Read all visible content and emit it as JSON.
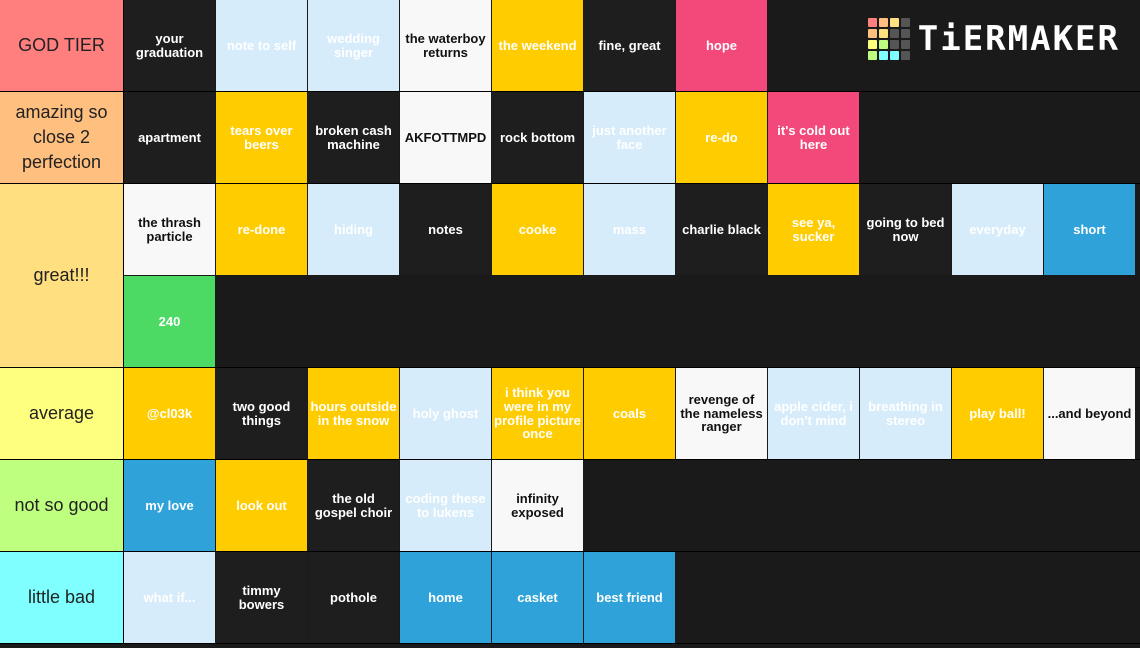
{
  "logo": "TiERMAKER",
  "tiers": [
    {
      "label": "GOD TIER",
      "color": "#ff7f7f",
      "items": [
        {
          "text": "your graduation",
          "color": "#1e1e1e"
        },
        {
          "text": "note to self",
          "color": "#d6ecfa"
        },
        {
          "text": "wedding singer",
          "color": "#d6ecfa"
        },
        {
          "text": "the waterboy returns",
          "color": "#f8f8f8"
        },
        {
          "text": "the weekend",
          "color": "#ffcc00"
        },
        {
          "text": "fine, great",
          "color": "#1e1e1e"
        },
        {
          "text": "hope",
          "color": "#f2497a"
        }
      ]
    },
    {
      "label": "amazing so close 2 perfection",
      "color": "#ffbf7f",
      "items": [
        {
          "text": "apartment",
          "color": "#1e1e1e"
        },
        {
          "text": "tears over beers",
          "color": "#ffcc00"
        },
        {
          "text": "broken cash machine",
          "color": "#1e1e1e"
        },
        {
          "text": "AKFOTTMPD",
          "color": "#f8f8f8"
        },
        {
          "text": "rock bottom",
          "color": "#1e1e1e"
        },
        {
          "text": "just another face",
          "color": "#d6ecfa"
        },
        {
          "text": "re-do",
          "color": "#ffcc00"
        },
        {
          "text": "it's cold out here",
          "color": "#f2497a"
        }
      ]
    },
    {
      "label": "great!!!",
      "color": "#ffdf7f",
      "items": [
        {
          "text": "the thrash particle",
          "color": "#f8f8f8"
        },
        {
          "text": "re-done",
          "color": "#ffcc00"
        },
        {
          "text": "hiding",
          "color": "#d6ecfa"
        },
        {
          "text": "notes",
          "color": "#1e1e1e"
        },
        {
          "text": "cooke",
          "color": "#ffcc00"
        },
        {
          "text": "mass",
          "color": "#d6ecfa"
        },
        {
          "text": "charlie black",
          "color": "#1e1e1e"
        },
        {
          "text": "see ya, sucker",
          "color": "#ffcc00"
        },
        {
          "text": "going to bed now",
          "color": "#1e1e1e"
        },
        {
          "text": "everyday",
          "color": "#d6ecfa"
        },
        {
          "text": "short",
          "color": "#2fa3d9"
        },
        {
          "text": "240",
          "color": "#4cd964"
        }
      ]
    },
    {
      "label": "average",
      "color": "#ffff7f",
      "items": [
        {
          "text": "@cl03k",
          "color": "#ffcc00"
        },
        {
          "text": "two good things",
          "color": "#1e1e1e"
        },
        {
          "text": "hours outside in the snow",
          "color": "#ffcc00"
        },
        {
          "text": "holy ghost",
          "color": "#d6ecfa"
        },
        {
          "text": "i think you were in my profile picture once",
          "color": "#ffcc00"
        },
        {
          "text": "coals",
          "color": "#ffcc00"
        },
        {
          "text": "revenge of the nameless ranger",
          "color": "#f8f8f8"
        },
        {
          "text": "apple cider, i don't mind",
          "color": "#d6ecfa"
        },
        {
          "text": "breathing in stereo",
          "color": "#d6ecfa"
        },
        {
          "text": "play ball!",
          "color": "#ffcc00"
        },
        {
          "text": "...and beyond",
          "color": "#f8f8f8"
        }
      ]
    },
    {
      "label": "not so good",
      "color": "#bfff7f",
      "items": [
        {
          "text": "my love",
          "color": "#2fa3d9"
        },
        {
          "text": "look out",
          "color": "#ffcc00"
        },
        {
          "text": "the old gospel choir",
          "color": "#1e1e1e"
        },
        {
          "text": "coding these to lukens",
          "color": "#d6ecfa"
        },
        {
          "text": "infinity exposed",
          "color": "#f8f8f8"
        }
      ]
    },
    {
      "label": "little bad",
      "color": "#7fffff",
      "items": [
        {
          "text": "what if...",
          "color": "#d6ecfa"
        },
        {
          "text": "timmy bowers",
          "color": "#1e1e1e"
        },
        {
          "text": "pothole",
          "color": "#1e1e1e"
        },
        {
          "text": "home",
          "color": "#2fa3d9"
        },
        {
          "text": "casket",
          "color": "#2fa3d9"
        },
        {
          "text": "best friend",
          "color": "#2fa3d9"
        }
      ]
    }
  ]
}
